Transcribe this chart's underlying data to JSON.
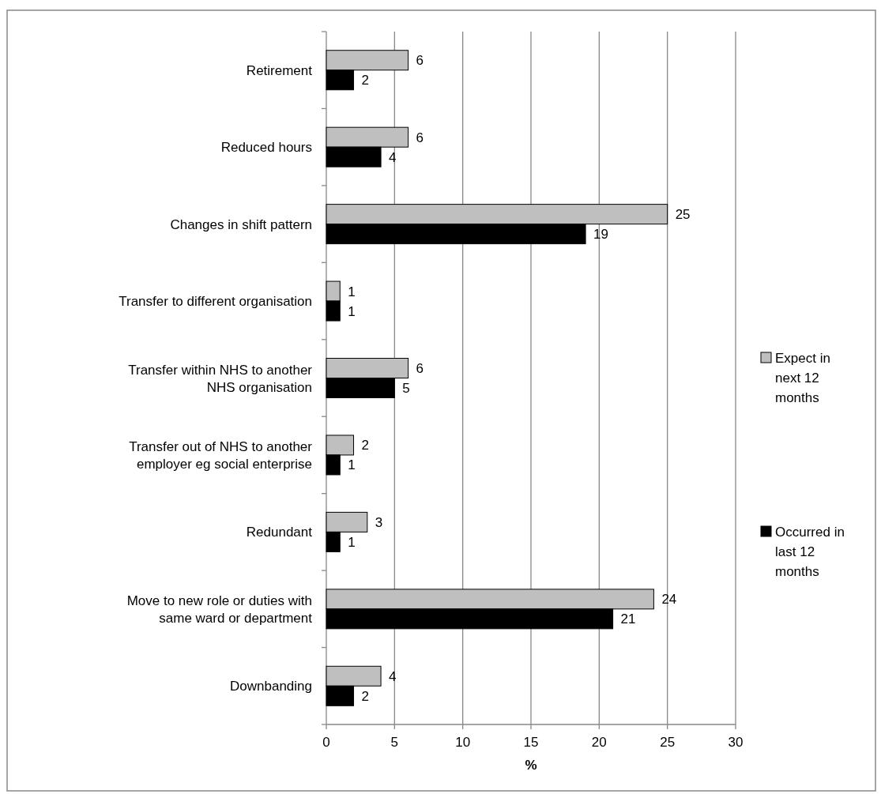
{
  "chart_data": {
    "type": "bar",
    "orientation": "horizontal",
    "xlabel": "%",
    "categories": [
      "Retirement",
      "Reduced hours",
      "Changes in shift pattern",
      "Transfer to different organisation",
      "Transfer within NHS to another NHS organisation",
      "Transfer out of NHS to another employer eg social enterprise",
      "Redundant",
      "Move to new role or duties with same ward or department",
      "Downbanding"
    ],
    "series": [
      {
        "name": "Expect in next 12 months",
        "color": "#bfbfbf",
        "values": [
          6,
          6,
          25,
          1,
          6,
          2,
          3,
          24,
          4
        ]
      },
      {
        "name": "Occurred in last 12 months",
        "color": "#000000",
        "values": [
          2,
          4,
          19,
          1,
          5,
          1,
          1,
          21,
          2
        ]
      }
    ],
    "xlim": [
      0,
      30
    ],
    "xticks": [
      0,
      5,
      10,
      15,
      20,
      25,
      30
    ],
    "grid": "x",
    "legend": "right",
    "data_labels": true
  }
}
